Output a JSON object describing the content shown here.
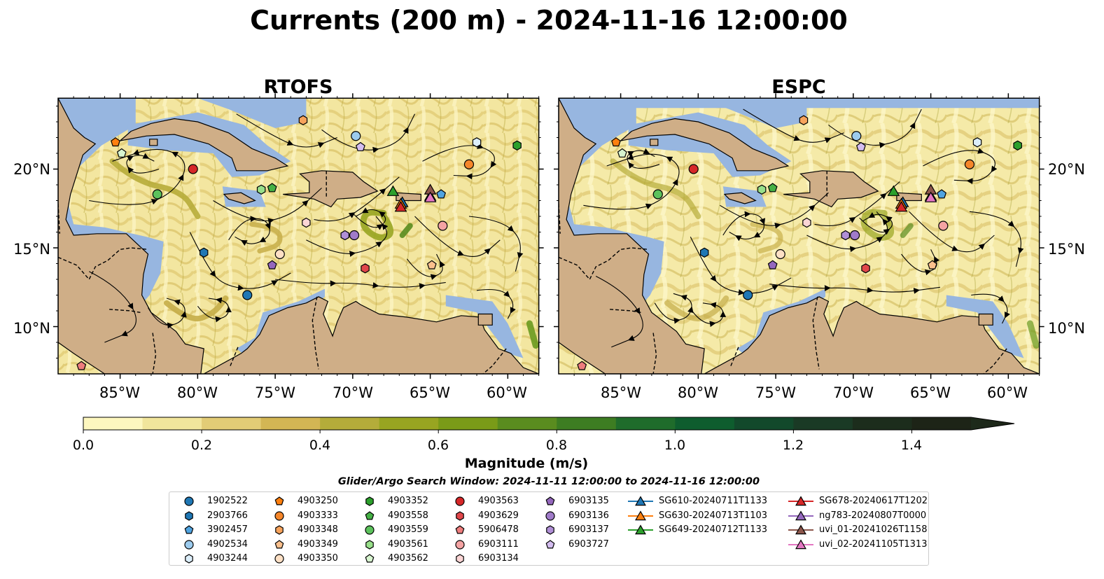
{
  "figure": {
    "title": "Currents (200 m) - 2024-11-16 12:00:00",
    "search_window": "Glider/Argo Search Window: 2024-11-11 12:00:00 to 2024-11-16 12:00:00"
  },
  "panels": [
    {
      "title": "RTOFS"
    },
    {
      "title": "ESPC"
    }
  ],
  "colors": {
    "land": "#cfae87",
    "water_shallow": "#97b6e0",
    "cmap": [
      "#fdf7bf",
      "#f1e59c",
      "#e2cc76",
      "#d3b654",
      "#b4ac3a",
      "#98a521",
      "#7a9b18",
      "#5a8c1f",
      "#3d7d22",
      "#1f6c2b",
      "#0e5d2e",
      "#12492b",
      "#1a3a25",
      "#1c2d1c",
      "#1d2417"
    ]
  },
  "chart_data": [
    {
      "type": "heatmap",
      "panel": "RTOFS",
      "title": "RTOFS",
      "x_tick_labels": [
        "85°W",
        "80°W",
        "75°W",
        "70°W",
        "65°W",
        "60°W"
      ],
      "y_tick_labels": [
        "20°N",
        "15°N",
        "10°N"
      ],
      "xlim": [
        -89,
        -58
      ],
      "ylim": [
        7,
        24.5
      ],
      "variable": "current magnitude at 200 m with streamlines"
    },
    {
      "type": "heatmap",
      "panel": "ESPC",
      "title": "ESPC",
      "x_tick_labels": [
        "85°W",
        "80°W",
        "75°W",
        "70°W",
        "65°W",
        "60°W"
      ],
      "y_tick_labels": [
        "20°N",
        "15°N",
        "10°N"
      ],
      "xlim": [
        -89,
        -58
      ],
      "ylim": [
        7,
        24.5
      ],
      "variable": "current magnitude at 200 m with streamlines"
    }
  ],
  "colorbar": {
    "label": "Magnitude (m/s)",
    "ticks": [
      "0.0",
      "0.2",
      "0.4",
      "0.6",
      "0.8",
      "1.0",
      "1.2",
      "1.4"
    ],
    "min": 0.0,
    "max": 1.5,
    "step": 0.1,
    "extend": "max"
  },
  "platforms": [
    {
      "id": "1902522",
      "marker": "circle",
      "color": "#1f77b4",
      "lon": -76.8,
      "lat": 12.0
    },
    {
      "id": "2903766",
      "marker": "hexagon",
      "color": "#1f77b4",
      "lon": -79.6,
      "lat": 14.7
    },
    {
      "id": "3902457",
      "marker": "pentagon",
      "color": "#4fa3e0",
      "lon": -64.3,
      "lat": 18.4
    },
    {
      "id": "4902534",
      "marker": "circle",
      "color": "#9ccbee",
      "lon": -69.8,
      "lat": 22.1
    },
    {
      "id": "4903244",
      "marker": "hexagon",
      "color": "#dceefa",
      "lon": -62.0,
      "lat": 21.7
    },
    {
      "id": "4903250",
      "marker": "pentagon",
      "color": "#ff7f0e",
      "lon": -85.3,
      "lat": 21.7
    },
    {
      "id": "4903333",
      "marker": "circle",
      "color": "#f5862a",
      "lon": -62.5,
      "lat": 20.3
    },
    {
      "id": "4903348",
      "marker": "hexagon",
      "color": "#f7a35c",
      "lon": -73.2,
      "lat": 23.1
    },
    {
      "id": "4903349",
      "marker": "pentagon",
      "color": "#fbc08d",
      "lon": -64.9,
      "lat": 13.9
    },
    {
      "id": "4903350",
      "marker": "circle",
      "color": "#fde0c5",
      "lon": -74.7,
      "lat": 14.6
    },
    {
      "id": "4903352",
      "marker": "hexagon",
      "color": "#2ca02c",
      "lon": -59.4,
      "lat": 21.5
    },
    {
      "id": "4903558",
      "marker": "pentagon",
      "color": "#45b045",
      "lon": -75.2,
      "lat": 18.8
    },
    {
      "id": "4903559",
      "marker": "circle",
      "color": "#5cc25c",
      "lon": -82.6,
      "lat": 18.4
    },
    {
      "id": "4903561",
      "marker": "hexagon",
      "color": "#98df8a",
      "lon": -75.9,
      "lat": 18.7
    },
    {
      "id": "4903562",
      "marker": "pentagon",
      "color": "#d8f5d0",
      "lon": -84.9,
      "lat": 21.0
    },
    {
      "id": "4903563",
      "marker": "circle",
      "color": "#d62728",
      "lon": -80.3,
      "lat": 20.0
    },
    {
      "id": "4903629",
      "marker": "hexagon",
      "color": "#e0464a",
      "lon": -69.2,
      "lat": 13.7
    },
    {
      "id": "5906478",
      "marker": "pentagon",
      "color": "#ee7d7d",
      "lon": -87.5,
      "lat": 7.5
    },
    {
      "id": "6903111",
      "marker": "circle",
      "color": "#f4a3a3",
      "lon": -64.2,
      "lat": 16.4
    },
    {
      "id": "6903134",
      "marker": "hexagon",
      "color": "#fbd5d5",
      "lon": -73.0,
      "lat": 16.6
    },
    {
      "id": "6903135",
      "marker": "pentagon",
      "color": "#9467bd",
      "lon": -75.2,
      "lat": 13.9
    },
    {
      "id": "6903136",
      "marker": "circle",
      "color": "#a07bc9",
      "lon": -69.9,
      "lat": 15.8
    },
    {
      "id": "6903137",
      "marker": "hexagon",
      "color": "#b08fd6",
      "lon": -70.5,
      "lat": 15.8
    },
    {
      "id": "6903727",
      "marker": "pentagon",
      "color": "#d4bdf0",
      "lon": -69.5,
      "lat": 21.4
    }
  ],
  "gliders": [
    {
      "id": "SG610-20240711T1133",
      "color": "#1f77b4",
      "lon": -66.8,
      "lat": 17.9
    },
    {
      "id": "SG630-20240713T1103",
      "color": "#ff7f0e",
      "lon": -66.9,
      "lat": 17.8
    },
    {
      "id": "SG649-20240712T1133",
      "color": "#2ca02c",
      "lon": -67.4,
      "lat": 18.6
    },
    {
      "id": "SG678-20240617T1202",
      "color": "#d62728",
      "lon": -66.9,
      "lat": 17.6
    },
    {
      "id": "ng783-20240807T0000",
      "color": "#9467bd",
      "lon": -65.0,
      "lat": 18.3
    },
    {
      "id": "uvi_01-20241026T1158",
      "color": "#8c564b",
      "lon": -65.0,
      "lat": 18.7
    },
    {
      "id": "uvi_02-20241105T1313",
      "color": "#e377c2",
      "lon": -65.0,
      "lat": 18.2
    }
  ]
}
